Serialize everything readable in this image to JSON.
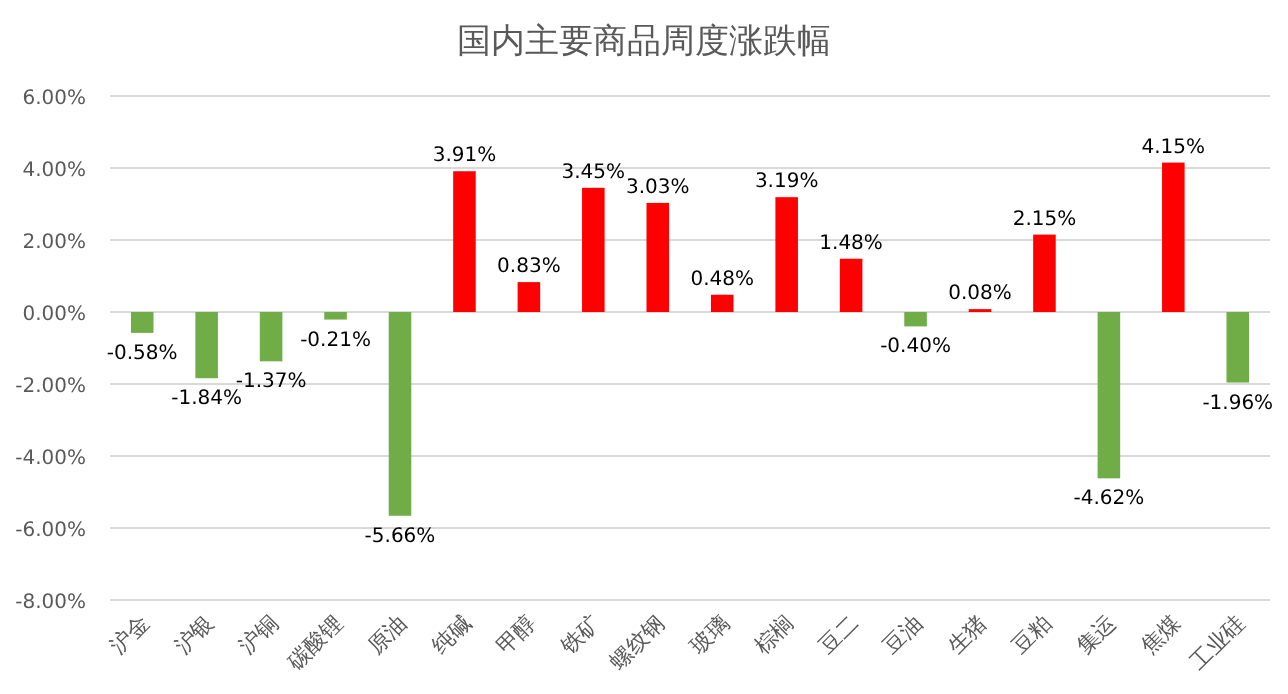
{
  "chart_data": {
    "type": "bar",
    "title": "国内主要商品周度涨跌幅",
    "categories": [
      "沪金",
      "沪银",
      "沪铜",
      "碳酸锂",
      "原油",
      "纯碱",
      "甲醇",
      "铁矿",
      "螺纹钢",
      "玻璃",
      "棕榈",
      "豆二",
      "豆油",
      "生猪",
      "豆粕",
      "集运",
      "焦煤",
      "工业硅"
    ],
    "values": [
      -0.58,
      -1.84,
      -1.37,
      -0.21,
      -5.66,
      3.91,
      0.83,
      3.45,
      3.03,
      0.48,
      3.19,
      1.48,
      -0.4,
      0.08,
      2.15,
      -4.62,
      4.15,
      -1.96
    ],
    "value_labels": [
      "-0.58%",
      "-1.84%",
      "-1.37%",
      "-0.21%",
      "-5.66%",
      "3.91%",
      "0.83%",
      "3.45%",
      "3.03%",
      "0.48%",
      "3.19%",
      "1.48%",
      "-0.40%",
      "0.08%",
      "2.15%",
      "-4.62%",
      "4.15%",
      "-1.96%"
    ],
    "colors": [
      "#70ad47",
      "#70ad47",
      "#70ad47",
      "#70ad47",
      "#70ad47",
      "#ff0000",
      "#ff0000",
      "#ff0000",
      "#ff0000",
      "#ff0000",
      "#ff0000",
      "#ff0000",
      "#70ad47",
      "#ff0000",
      "#ff0000",
      "#70ad47",
      "#ff0000",
      "#70ad47"
    ],
    "ylim": [
      -8,
      6
    ],
    "yticks": [
      {
        "value": -8,
        "label": "-8.00%"
      },
      {
        "value": -6,
        "label": "-6.00%"
      },
      {
        "value": -4,
        "label": "-4.00%"
      },
      {
        "value": -2,
        "label": "-2.00%"
      },
      {
        "value": 0,
        "label": "0.00%"
      },
      {
        "value": 2,
        "label": "2.00%"
      },
      {
        "value": 4,
        "label": "4.00%"
      },
      {
        "value": 6,
        "label": "6.00%"
      }
    ],
    "grid": "y"
  }
}
